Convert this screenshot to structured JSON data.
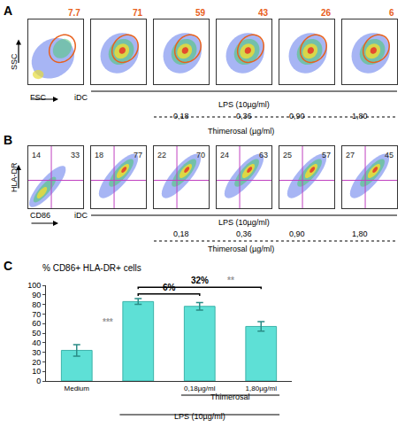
{
  "flow_panels": [
    {
      "label": "A",
      "x_label": "FSC",
      "y_label": "SSC",
      "control": "iDC",
      "treatment": "LPS (10µg/ml)",
      "dose_title": "Thimerosal (µg/ml)",
      "doses": [
        null,
        null,
        "0,18",
        "0,36",
        "0,90",
        "1,80"
      ],
      "gate_percent": [
        7.7,
        71,
        59,
        43,
        26,
        6
      ],
      "color": "#e8601c",
      "tick_labels": false
    },
    {
      "label": "B",
      "x_label": "CD86",
      "y_label": "HLA-DR",
      "control": "iDC",
      "treatment": "LPS (10µg/ml)",
      "dose_title": "Thimerosal (µg/ml)",
      "doses": [
        null,
        null,
        "0,18",
        "0,36",
        "0,90",
        "1,80"
      ],
      "quadrant_upper_left": [
        14,
        18,
        22,
        24,
        25,
        27
      ],
      "quadrant_upper_right": [
        33,
        77,
        70,
        63,
        57,
        45
      ],
      "color": "#222222",
      "tick_labels": false
    }
  ],
  "chart_label": "C",
  "chart_data": {
    "type": "bar",
    "title": "% CD86+ HLA-DR+ cells",
    "categories": [
      "Medium",
      null,
      "0,18µg/ml",
      "1,80µg/ml"
    ],
    "values": [
      32,
      83,
      78,
      57
    ],
    "errors": [
      6,
      3,
      4,
      5
    ],
    "color": "#5ee0d6",
    "ylim": [
      0,
      100
    ],
    "yticks": [
      0,
      10,
      20,
      30,
      40,
      50,
      60,
      70,
      80,
      90,
      100
    ],
    "grid": false,
    "groups": [
      {
        "label": "Thimerosal",
        "from": 2,
        "to": 3
      },
      {
        "label": "LPS (10µg/ml)",
        "from": 1,
        "to": 3
      }
    ],
    "comparisons": [
      {
        "from": 0,
        "to": 1,
        "significance": "***"
      },
      {
        "from": 1,
        "to": 2,
        "label": "6%"
      },
      {
        "from": 1,
        "to": 3,
        "label": "32%",
        "significance": "**"
      }
    ]
  }
}
